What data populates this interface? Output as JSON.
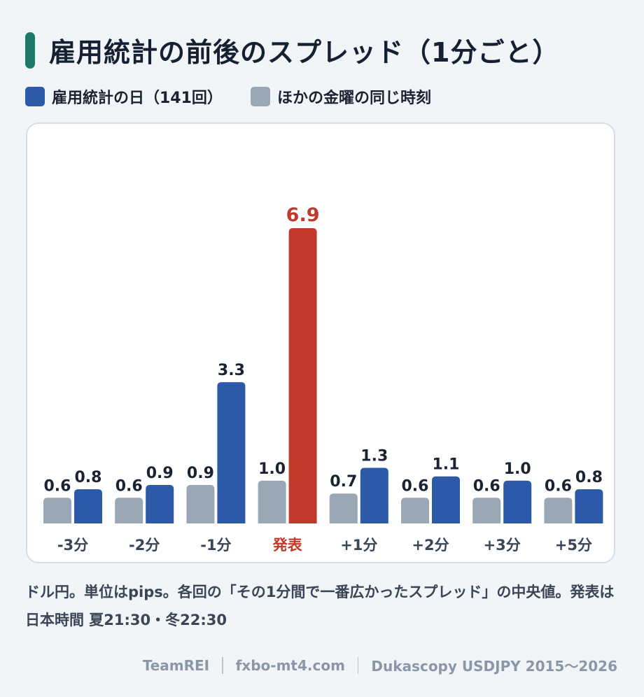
{
  "title": "雇用統計の前後のスプレッド（1分ごと）",
  "legend": [
    {
      "label": "雇用統計の日（141回）",
      "color": "#2d5aa8"
    },
    {
      "label": "ほかの金曜の同じ時刻",
      "color": "#9aa7b5"
    }
  ],
  "colors": {
    "accent": "#1d7a6b",
    "highlight": "#c0392b",
    "nfp": "#2d5aa8",
    "other": "#9aa7b5",
    "label_text": "#1b2333"
  },
  "chart_data": {
    "type": "bar",
    "categories": [
      "-3分",
      "-2分",
      "-1分",
      "発表",
      "+1分",
      "+2分",
      "+3分",
      "+5分"
    ],
    "highlight_category": "発表",
    "series": [
      {
        "name": "ほかの金曜の同じ時刻",
        "values": [
          0.6,
          0.6,
          0.9,
          1.0,
          0.7,
          0.6,
          0.6,
          0.6
        ]
      },
      {
        "name": "雇用統計の日（141回）",
        "values": [
          0.8,
          0.9,
          3.3,
          6.9,
          1.3,
          1.1,
          1.0,
          0.8
        ]
      }
    ],
    "value_labels": {
      "other": [
        "0.6",
        "0.6",
        "0.9",
        "1.0",
        "0.7",
        "0.6",
        "0.6",
        "0.6"
      ],
      "nfp": [
        "0.8",
        "0.9",
        "3.3",
        "6.9",
        "1.3",
        "1.1",
        "1.0",
        "0.8"
      ]
    },
    "ylim": [
      0,
      6.9
    ],
    "grid": false,
    "legend_position": "top-left"
  },
  "note": "ドル円。単位はpips。各回の「その1分間で一番広かったスプレッド」の中央値。発表は日本時間 夏21:30・冬22:30",
  "footer": [
    "TeamREI",
    "fxbo-mt4.com",
    "Dukascopy USDJPY 2015〜2026"
  ]
}
